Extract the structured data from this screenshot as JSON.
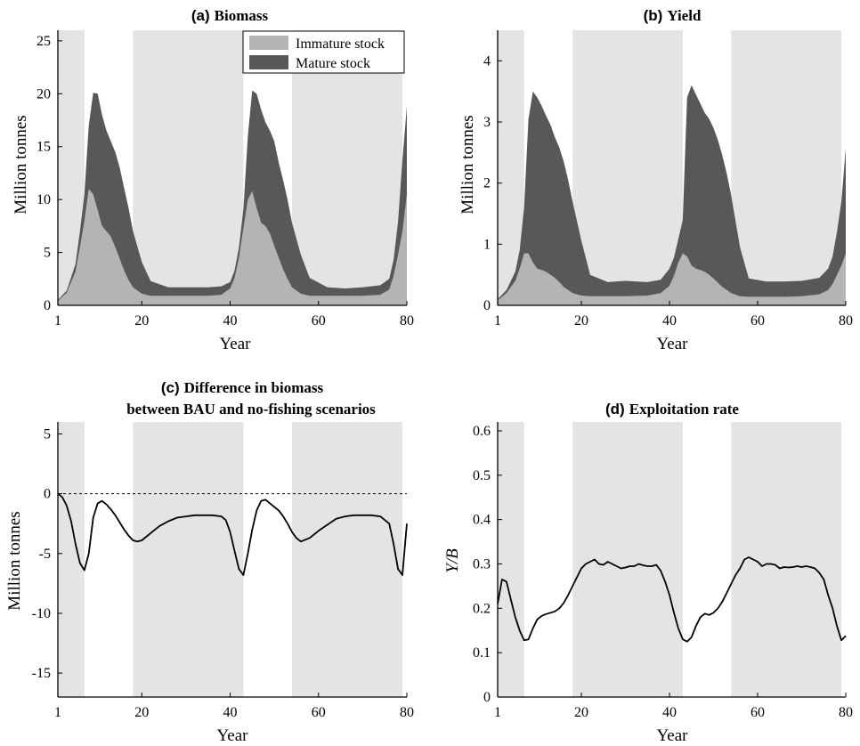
{
  "colors": {
    "shade": "#e4e4e4",
    "immature": "#b4b4b4",
    "mature": "#585858",
    "line": "#000000",
    "axis": "#000000"
  },
  "chart_data": [
    {
      "id": "a",
      "type": "area",
      "stacked": true,
      "title_tag": "(a)",
      "title": "Biomass",
      "xlabel": "Year",
      "ylabel": "Million tonnes",
      "xlim": [
        1,
        80
      ],
      "ylim": [
        0,
        26
      ],
      "xticks": [
        1,
        20,
        40,
        60,
        80
      ],
      "yticks": [
        0,
        5,
        10,
        15,
        20,
        25
      ],
      "shaded_periods": [
        [
          1,
          7
        ],
        [
          18,
          43
        ],
        [
          54,
          79
        ]
      ],
      "legend": {
        "position": "top-right",
        "entries": [
          "Immature stock",
          "Mature stock"
        ]
      },
      "x": [
        1,
        3,
        5,
        6,
        7,
        8,
        9,
        10,
        11,
        12,
        13,
        14,
        15,
        16,
        17,
        18,
        20,
        22,
        26,
        30,
        35,
        38,
        40,
        41,
        42,
        43,
        44,
        45,
        46,
        47,
        48,
        49,
        50,
        51,
        52,
        53,
        54,
        56,
        58,
        62,
        66,
        70,
        74,
        76,
        77,
        78,
        79,
        80
      ],
      "series": [
        {
          "name": "Immature stock",
          "values": [
            0.4,
            1.2,
            3.2,
            5.5,
            8.0,
            11.0,
            10.5,
            9.0,
            7.5,
            7.0,
            6.5,
            5.5,
            4.4,
            3.3,
            2.4,
            1.7,
            1.1,
            0.9,
            0.9,
            0.9,
            0.9,
            1.0,
            1.6,
            2.6,
            4.5,
            7.3,
            10.0,
            10.8,
            9.2,
            7.8,
            7.5,
            6.8,
            5.6,
            4.5,
            3.4,
            2.5,
            1.7,
            1.1,
            0.9,
            0.9,
            0.9,
            0.9,
            1.0,
            1.5,
            2.8,
            4.8,
            7.0,
            10.5
          ]
        },
        {
          "name": "Mature stock",
          "values": [
            0.1,
            0.2,
            0.7,
            1.5,
            2.5,
            6.0,
            9.6,
            11.0,
            10.5,
            9.5,
            9.0,
            9.0,
            8.6,
            7.8,
            6.8,
            5.3,
            3.0,
            1.4,
            0.8,
            0.8,
            0.8,
            0.8,
            0.6,
            0.7,
            1.0,
            1.8,
            6.0,
            9.5,
            10.8,
            10.7,
            9.8,
            9.7,
            9.9,
            9.0,
            8.4,
            7.5,
            6.1,
            3.7,
            1.7,
            0.8,
            0.7,
            0.8,
            0.9,
            1.0,
            1.5,
            3.1,
            6.7,
            8.3
          ]
        }
      ]
    },
    {
      "id": "b",
      "type": "area",
      "stacked": true,
      "title_tag": "(b)",
      "title": "Yield",
      "xlabel": "Year",
      "ylabel": "Million tonnes",
      "xlim": [
        1,
        80
      ],
      "ylim": [
        0,
        4.5
      ],
      "xticks": [
        1,
        20,
        40,
        60,
        80
      ],
      "yticks": [
        0,
        1,
        2,
        3,
        4
      ],
      "shaded_periods": [
        [
          1,
          7
        ],
        [
          18,
          43
        ],
        [
          54,
          79
        ]
      ],
      "x": [
        1,
        3,
        5,
        6,
        7,
        8,
        9,
        10,
        11,
        12,
        13,
        14,
        15,
        16,
        17,
        18,
        20,
        22,
        26,
        30,
        35,
        38,
        40,
        41,
        42,
        43,
        44,
        45,
        46,
        47,
        48,
        49,
        50,
        51,
        52,
        53,
        54,
        56,
        58,
        62,
        66,
        70,
        74,
        76,
        77,
        78,
        79,
        80
      ],
      "series": [
        {
          "name": "Immature stock",
          "values": [
            0.08,
            0.2,
            0.4,
            0.6,
            0.85,
            0.85,
            0.7,
            0.6,
            0.58,
            0.55,
            0.5,
            0.45,
            0.38,
            0.3,
            0.25,
            0.2,
            0.16,
            0.15,
            0.15,
            0.15,
            0.16,
            0.2,
            0.32,
            0.48,
            0.7,
            0.85,
            0.8,
            0.65,
            0.6,
            0.58,
            0.55,
            0.5,
            0.44,
            0.37,
            0.3,
            0.25,
            0.2,
            0.15,
            0.14,
            0.14,
            0.14,
            0.15,
            0.18,
            0.25,
            0.35,
            0.5,
            0.65,
            0.85
          ]
        },
        {
          "name": "Mature stock",
          "values": [
            0.02,
            0.05,
            0.15,
            0.3,
            0.75,
            2.2,
            2.8,
            2.8,
            2.68,
            2.55,
            2.45,
            2.3,
            2.2,
            2.05,
            1.8,
            1.5,
            0.9,
            0.35,
            0.23,
            0.25,
            0.22,
            0.22,
            0.28,
            0.3,
            0.38,
            0.55,
            2.6,
            2.95,
            2.85,
            2.72,
            2.6,
            2.55,
            2.46,
            2.33,
            2.15,
            1.9,
            1.6,
            0.8,
            0.3,
            0.25,
            0.25,
            0.25,
            0.27,
            0.35,
            0.45,
            0.7,
            1.05,
            1.72
          ]
        }
      ]
    },
    {
      "id": "c",
      "type": "line",
      "title_tag": "(c)",
      "title_lines": [
        "Difference in biomass",
        "between BAU and no-fishing scenarios"
      ],
      "xlabel": "Year",
      "ylabel": "Million tonnes",
      "xlim": [
        1,
        80
      ],
      "ylim": [
        -17,
        6
      ],
      "xticks": [
        1,
        20,
        40,
        60,
        80
      ],
      "yticks": [
        -15,
        -10,
        -5,
        0,
        5
      ],
      "shaded_periods": [
        [
          1,
          7
        ],
        [
          18,
          43
        ],
        [
          54,
          79
        ]
      ],
      "reference_line": 0,
      "x": [
        1,
        2,
        3,
        4,
        5,
        6,
        7,
        8,
        9,
        10,
        11,
        12,
        13,
        14,
        15,
        16,
        17,
        18,
        19,
        20,
        22,
        24,
        26,
        28,
        30,
        32,
        34,
        36,
        38,
        39,
        40,
        41,
        42,
        43,
        44,
        45,
        46,
        47,
        48,
        49,
        50,
        51,
        52,
        53,
        54,
        55,
        56,
        58,
        60,
        62,
        64,
        66,
        68,
        70,
        72,
        74,
        76,
        77,
        78,
        79,
        80
      ],
      "series": [
        {
          "name": "",
          "values": [
            0,
            -0.3,
            -1.0,
            -2.3,
            -4.2,
            -5.8,
            -6.4,
            -5.0,
            -2.0,
            -0.8,
            -0.6,
            -0.9,
            -1.3,
            -1.8,
            -2.4,
            -3.0,
            -3.5,
            -3.9,
            -4.0,
            -3.9,
            -3.3,
            -2.7,
            -2.3,
            -2.0,
            -1.9,
            -1.8,
            -1.8,
            -1.8,
            -1.9,
            -2.2,
            -3.2,
            -4.8,
            -6.3,
            -6.8,
            -5.0,
            -3.0,
            -1.4,
            -0.6,
            -0.5,
            -0.8,
            -1.1,
            -1.4,
            -1.9,
            -2.5,
            -3.2,
            -3.7,
            -4.0,
            -3.7,
            -3.1,
            -2.6,
            -2.1,
            -1.9,
            -1.8,
            -1.8,
            -1.8,
            -1.9,
            -2.5,
            -4.2,
            -6.3,
            -6.8,
            -2.5
          ]
        }
      ]
    },
    {
      "id": "d",
      "type": "line",
      "title_tag": "(d)",
      "title": "Exploitation rate",
      "xlabel": "Year",
      "ylabel": "Y/B",
      "xlim": [
        1,
        80
      ],
      "ylim": [
        0,
        0.62
      ],
      "xticks": [
        1,
        20,
        40,
        60,
        80
      ],
      "yticks": [
        0,
        0.1,
        0.2,
        0.3,
        0.4,
        0.5,
        0.6
      ],
      "shaded_periods": [
        [
          1,
          7
        ],
        [
          18,
          43
        ],
        [
          54,
          79
        ]
      ],
      "x": [
        1,
        2,
        3,
        4,
        5,
        6,
        7,
        8,
        9,
        10,
        11,
        12,
        13,
        14,
        15,
        16,
        17,
        18,
        19,
        20,
        21,
        22,
        23,
        24,
        25,
        26,
        27,
        28,
        29,
        30,
        31,
        32,
        33,
        34,
        35,
        36,
        37,
        38,
        39,
        40,
        41,
        42,
        43,
        44,
        45,
        46,
        47,
        48,
        49,
        50,
        51,
        52,
        53,
        54,
        55,
        56,
        57,
        58,
        59,
        60,
        61,
        62,
        63,
        64,
        65,
        66,
        67,
        68,
        69,
        70,
        71,
        72,
        73,
        74,
        75,
        76,
        77,
        78,
        79,
        80
      ],
      "series": [
        {
          "name": "",
          "values": [
            0.21,
            0.265,
            0.26,
            0.22,
            0.18,
            0.15,
            0.128,
            0.13,
            0.155,
            0.175,
            0.183,
            0.187,
            0.19,
            0.193,
            0.2,
            0.212,
            0.23,
            0.25,
            0.27,
            0.29,
            0.3,
            0.305,
            0.31,
            0.3,
            0.298,
            0.305,
            0.3,
            0.295,
            0.29,
            0.292,
            0.295,
            0.295,
            0.3,
            0.297,
            0.295,
            0.295,
            0.298,
            0.285,
            0.26,
            0.23,
            0.19,
            0.155,
            0.13,
            0.125,
            0.135,
            0.16,
            0.18,
            0.188,
            0.185,
            0.19,
            0.2,
            0.215,
            0.235,
            0.255,
            0.275,
            0.29,
            0.31,
            0.315,
            0.31,
            0.305,
            0.295,
            0.3,
            0.3,
            0.298,
            0.29,
            0.293,
            0.292,
            0.293,
            0.295,
            0.293,
            0.295,
            0.293,
            0.29,
            0.28,
            0.265,
            0.23,
            0.2,
            0.16,
            0.128,
            0.138
          ]
        }
      ]
    }
  ]
}
